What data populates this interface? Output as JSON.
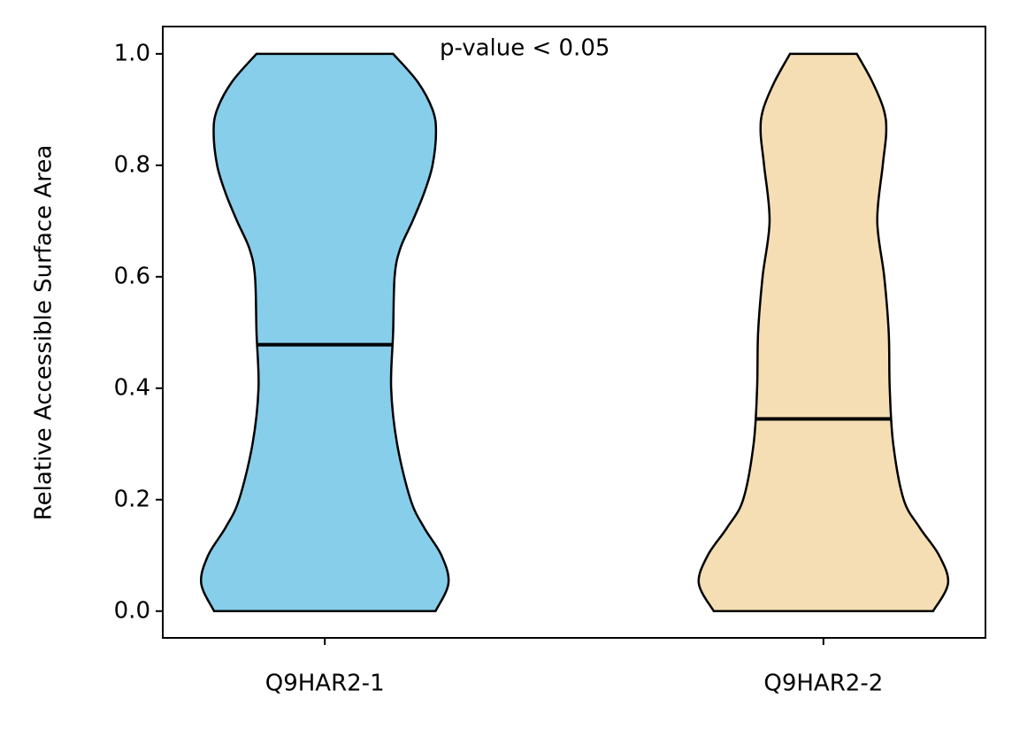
{
  "chart_data": {
    "type": "violin",
    "ylabel": "Relative Accessible Surface Area",
    "annotation": "p-value < 0.05",
    "categories": [
      "Q9HAR2-1",
      "Q9HAR2-2"
    ],
    "xlim": [
      0.675,
      2.325
    ],
    "ylim": [
      -0.048,
      1.049
    ],
    "yticks": [
      {
        "value": 0,
        "label": "0.0"
      },
      {
        "value": 0.2,
        "label": "0.2"
      },
      {
        "value": 0.4,
        "label": "0.4"
      },
      {
        "value": 0.6,
        "label": "0.6"
      },
      {
        "value": 0.8,
        "label": "0.8"
      },
      {
        "value": 1,
        "label": "1.0"
      }
    ],
    "series": [
      {
        "name": "Q9HAR2-1",
        "color": "#87ceeb",
        "median": 0.478,
        "y": [
          0,
          0.05,
          0.1,
          0.15,
          0.2,
          0.3,
          0.4,
          0.5,
          0.6,
          0.65,
          0.7,
          0.75,
          0.8,
          0.86,
          0.9,
          0.95,
          1.0
        ],
        "halfwidth": [
          0.222,
          0.248,
          0.234,
          0.199,
          0.172,
          0.145,
          0.133,
          0.137,
          0.14,
          0.151,
          0.176,
          0.199,
          0.216,
          0.223,
          0.216,
          0.186,
          0.137
        ]
      },
      {
        "name": "Q9HAR2-2",
        "color": "#f5deb3",
        "median": 0.345,
        "y": [
          0,
          0.05,
          0.1,
          0.15,
          0.2,
          0.3,
          0.4,
          0.5,
          0.6,
          0.7,
          0.8,
          0.86,
          0.9,
          0.95,
          1.0
        ],
        "halfwidth": [
          0.22,
          0.25,
          0.232,
          0.193,
          0.161,
          0.14,
          0.133,
          0.131,
          0.122,
          0.108,
          0.119,
          0.126,
          0.121,
          0.098,
          0.067
        ]
      }
    ]
  }
}
